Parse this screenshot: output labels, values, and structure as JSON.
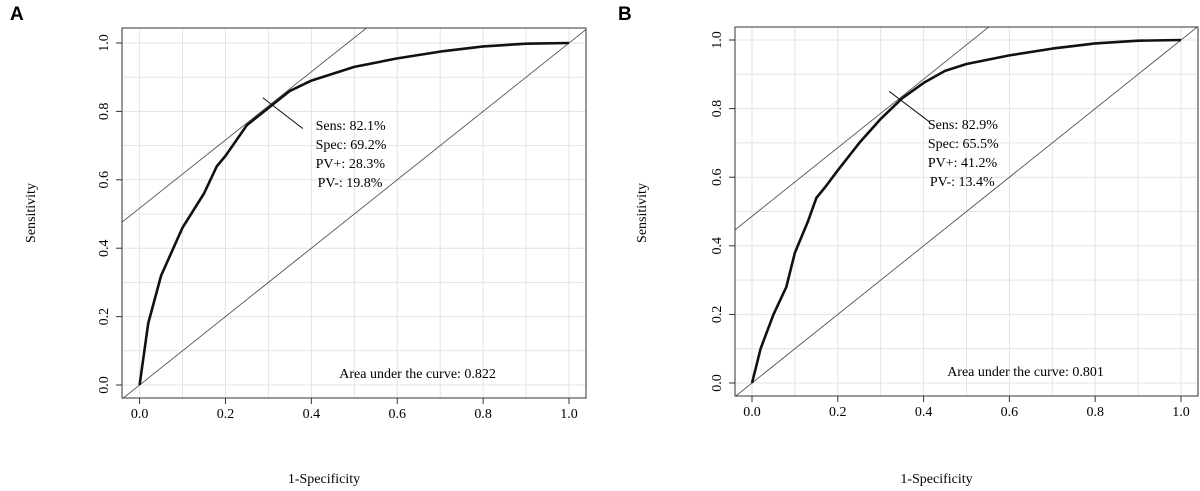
{
  "chart_data": [
    {
      "panel_label": "A",
      "type": "line",
      "xlabel": "1-Specificity",
      "ylabel": "Sensitivity",
      "xlim": [
        -0.04,
        1.04
      ],
      "ylim": [
        -0.04,
        1.04
      ],
      "grid": true,
      "x_ticks": [
        "0.0",
        "0.2",
        "0.4",
        "0.6",
        "0.8",
        "1.0"
      ],
      "y_ticks": [
        "0.0",
        "0.2",
        "0.4",
        "0.6",
        "0.8",
        "1.0"
      ],
      "series": [
        {
          "name": "ROC curve",
          "x": [
            0,
            0.02,
            0.05,
            0.1,
            0.15,
            0.18,
            0.2,
            0.25,
            0.3,
            0.35,
            0.4,
            0.5,
            0.6,
            0.7,
            0.8,
            0.9,
            1.0
          ],
          "y": [
            0,
            0.18,
            0.32,
            0.46,
            0.56,
            0.64,
            0.67,
            0.76,
            0.81,
            0.86,
            0.89,
            0.93,
            0.955,
            0.975,
            0.99,
            0.998,
            1.0
          ]
        },
        {
          "name": "reference diagonal",
          "x": [
            -0.04,
            1.04
          ],
          "y": [
            -0.04,
            1.04
          ]
        },
        {
          "name": "tangent line",
          "intercept": 0.517,
          "slope": 0.997
        },
        {
          "name": "optimal cutoff marker",
          "x": [
            0.287,
            0.38
          ],
          "y": [
            0.84,
            0.75
          ]
        }
      ],
      "optimal_point": {
        "x": 0.308,
        "y": 0.821
      },
      "annotations": {
        "sens": "Sens: 82.1%",
        "spec": "Spec: 69.2%",
        "ppv": "PV+: 28.3%",
        "npv": "PV-: 19.8%",
        "auc": "Area under the curve: 0.822"
      }
    },
    {
      "panel_label": "B",
      "type": "line",
      "xlabel": "1-Specificity",
      "ylabel": "Sensitivity",
      "xlim": [
        -0.04,
        1.04
      ],
      "ylim": [
        -0.04,
        1.04
      ],
      "grid": true,
      "x_ticks": [
        "0.0",
        "0.2",
        "0.4",
        "0.6",
        "0.8",
        "1.0"
      ],
      "y_ticks": [
        "0.0",
        "0.2",
        "0.4",
        "0.6",
        "0.8",
        "1.0"
      ],
      "series": [
        {
          "name": "ROC curve",
          "x": [
            0,
            0.01,
            0.02,
            0.05,
            0.08,
            0.1,
            0.13,
            0.15,
            0.17,
            0.2,
            0.25,
            0.3,
            0.35,
            0.4,
            0.45,
            0.5,
            0.6,
            0.7,
            0.8,
            0.9,
            1.0
          ],
          "y": [
            0,
            0.05,
            0.1,
            0.2,
            0.28,
            0.38,
            0.47,
            0.54,
            0.57,
            0.62,
            0.7,
            0.77,
            0.83,
            0.875,
            0.91,
            0.93,
            0.955,
            0.975,
            0.99,
            0.998,
            1.0
          ]
        },
        {
          "name": "reference diagonal",
          "x": [
            -0.04,
            1.04
          ],
          "y": [
            -0.04,
            1.04
          ]
        },
        {
          "name": "tangent line",
          "intercept": 0.486,
          "slope": 1.0
        },
        {
          "name": "optimal cutoff marker",
          "x": [
            0.32,
            0.415
          ],
          "y": [
            0.85,
            0.76
          ]
        }
      ],
      "optimal_point": {
        "x": 0.345,
        "y": 0.829
      },
      "annotations": {
        "sens": "Sens: 82.9%",
        "spec": "Spec: 65.5%",
        "ppv": "PV+: 41.2%",
        "npv": "PV-: 13.4%",
        "auc": "Area under the curve: 0.801"
      }
    }
  ]
}
